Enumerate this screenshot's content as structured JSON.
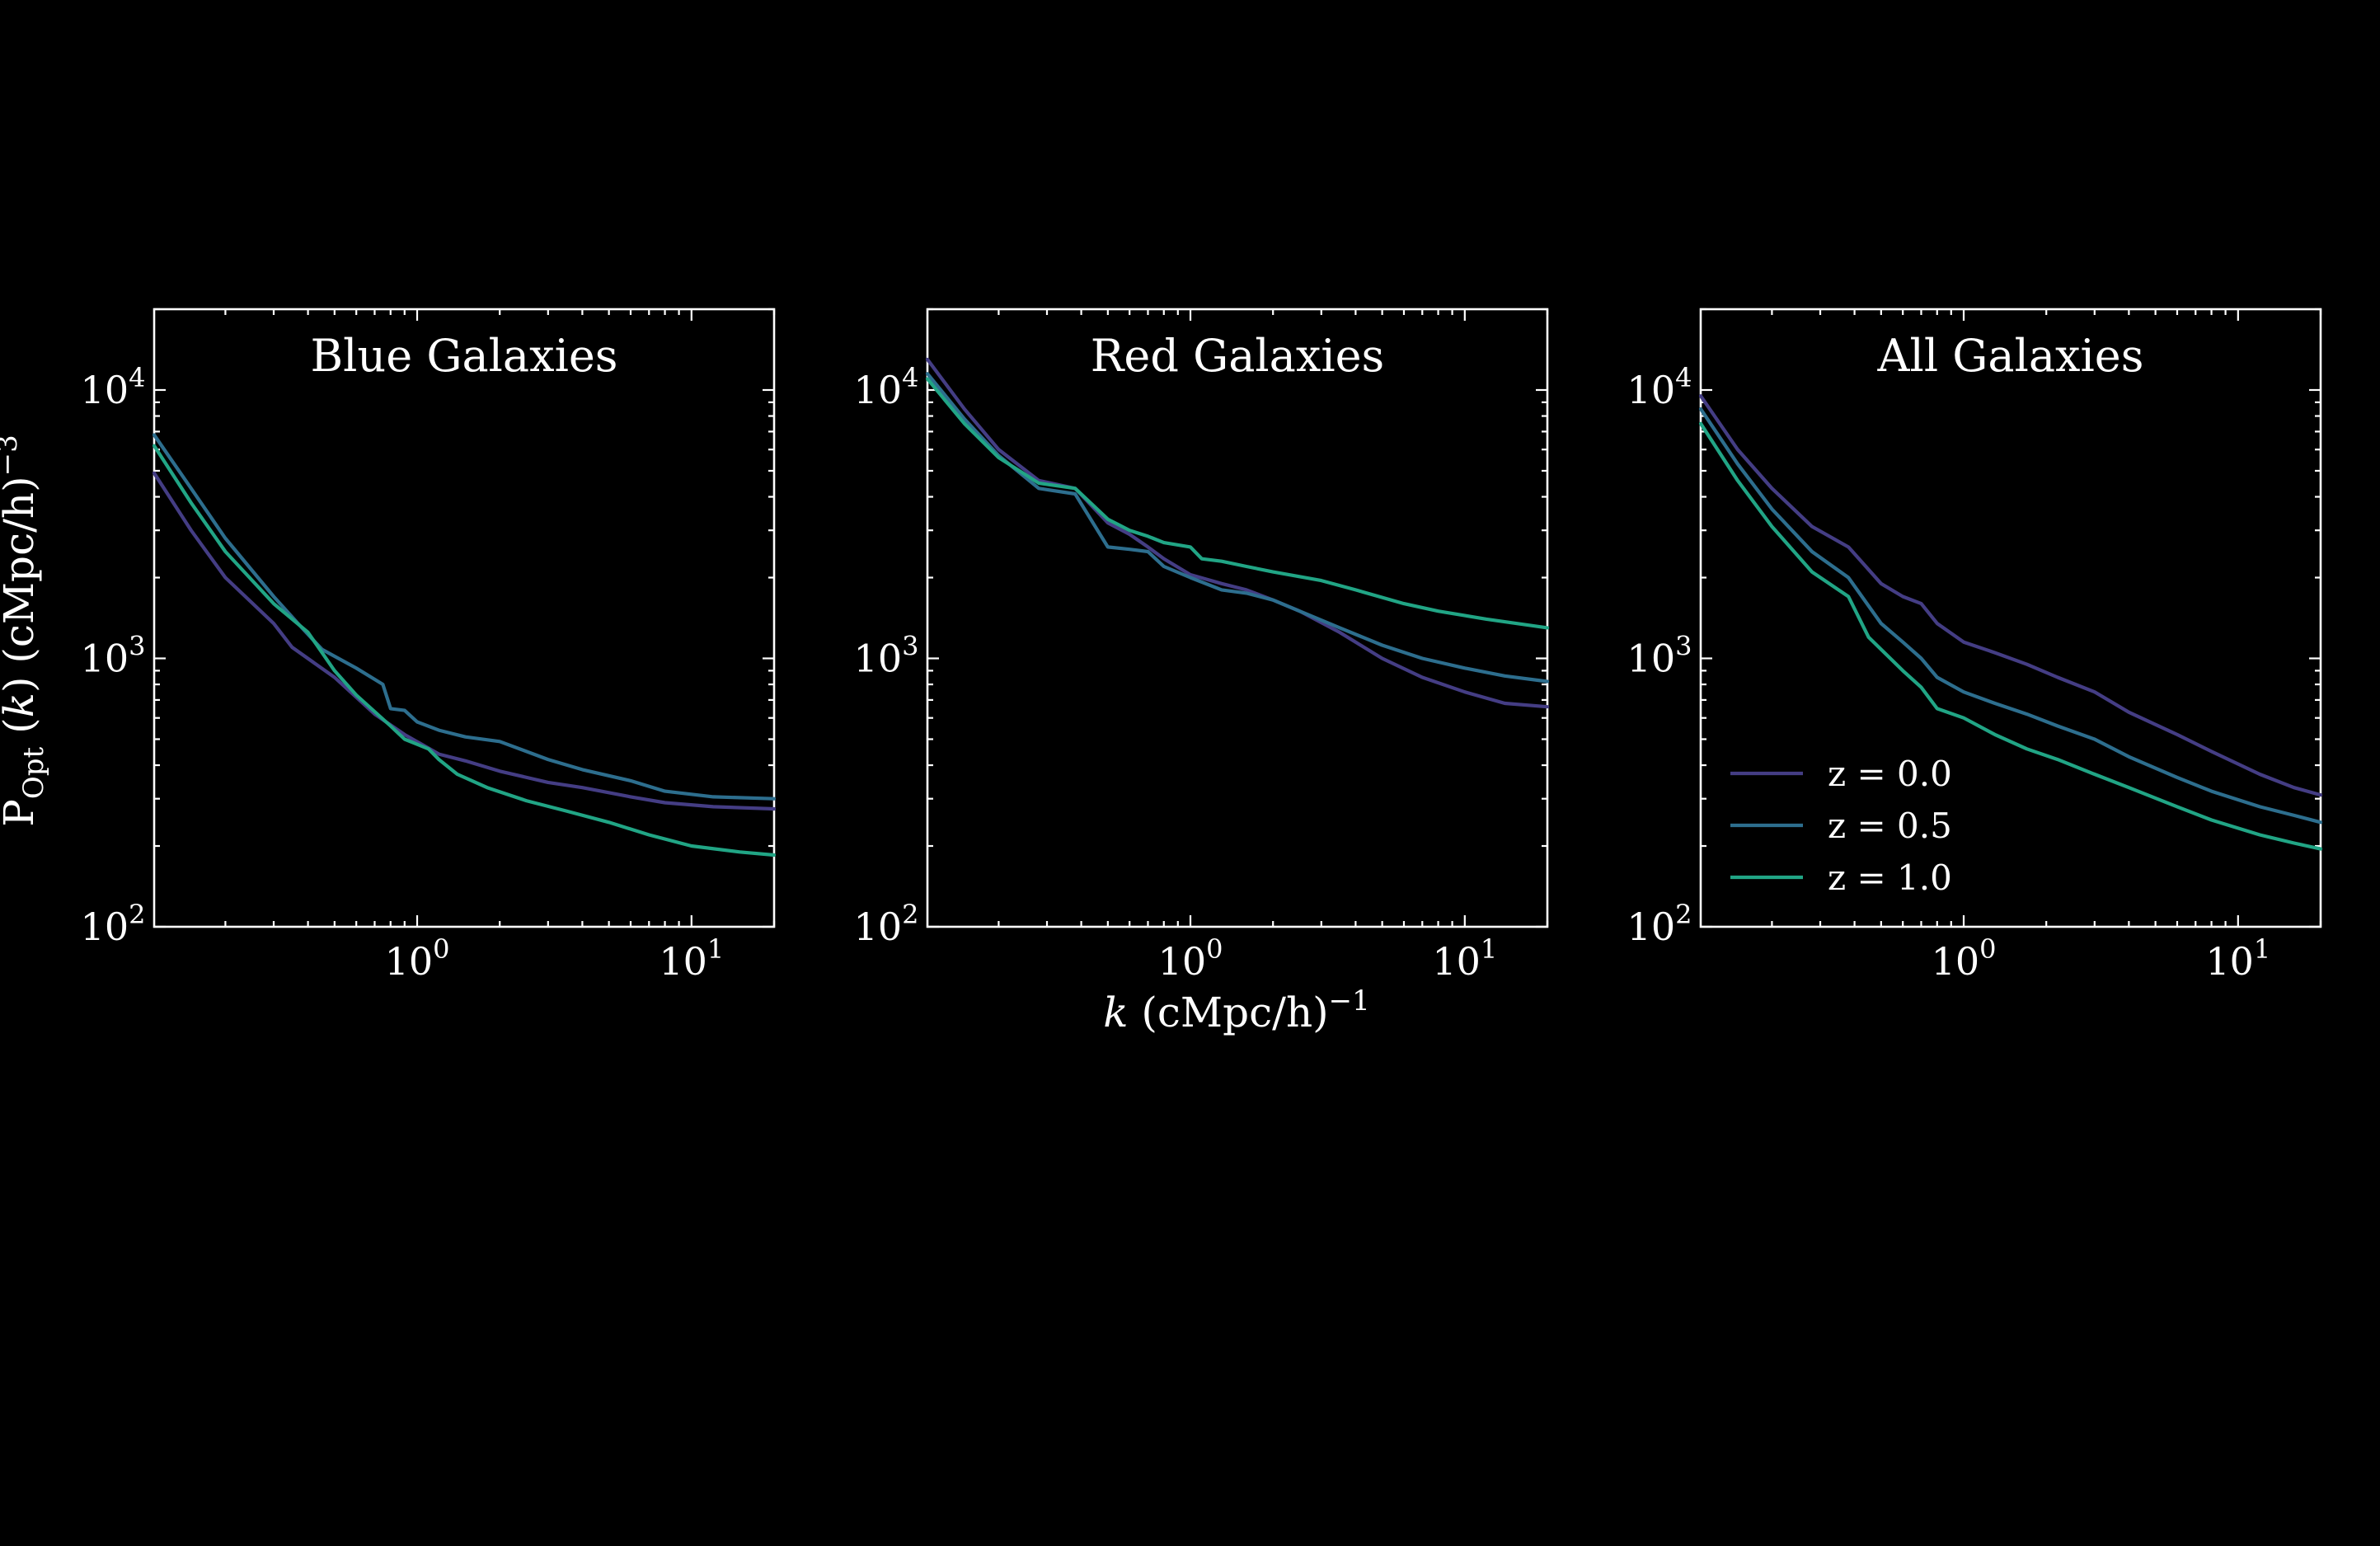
{
  "chart_data": [
    {
      "type": "line",
      "title": "Blue Galaxies",
      "xlabel": "",
      "ylabel": "P_Opt (k) (cMpc/h)^-3",
      "xscale": "log",
      "yscale": "log",
      "xlim": [
        0.11,
        20
      ],
      "ylim": [
        100,
        20000
      ],
      "xtick_labels": [
        "10^0",
        "10^1"
      ],
      "ytick_labels": [
        "10^2",
        "10^3",
        "10^4"
      ],
      "legend": null,
      "series": [
        {
          "name": "z = 0.0",
          "color": "#443d84",
          "points": [
            [
              0.11,
              4900
            ],
            [
              0.15,
              3000
            ],
            [
              0.2,
              2000
            ],
            [
              0.3,
              1350
            ],
            [
              0.35,
              1100
            ],
            [
              0.5,
              850
            ],
            [
              0.7,
              620
            ],
            [
              0.9,
              520
            ],
            [
              1.2,
              440
            ],
            [
              1.5,
              415
            ],
            [
              2,
              380
            ],
            [
              3,
              345
            ],
            [
              4,
              330
            ],
            [
              6,
              305
            ],
            [
              8,
              290
            ],
            [
              12,
              280
            ],
            [
              20,
              275
            ]
          ]
        },
        {
          "name": "z = 0.5",
          "color": "#2d6e8e",
          "points": [
            [
              0.11,
              6800
            ],
            [
              0.15,
              4300
            ],
            [
              0.2,
              2800
            ],
            [
              0.3,
              1700
            ],
            [
              0.38,
              1300
            ],
            [
              0.45,
              1080
            ],
            [
              0.6,
              920
            ],
            [
              0.75,
              800
            ],
            [
              0.8,
              650
            ],
            [
              0.9,
              640
            ],
            [
              1.0,
              580
            ],
            [
              1.2,
              540
            ],
            [
              1.5,
              510
            ],
            [
              2,
              490
            ],
            [
              3,
              420
            ],
            [
              4,
              385
            ],
            [
              6,
              350
            ],
            [
              8,
              320
            ],
            [
              12,
              305
            ],
            [
              20,
              300
            ]
          ]
        },
        {
          "name": "z = 1.0",
          "color": "#21a585",
          "points": [
            [
              0.11,
              6200
            ],
            [
              0.15,
              3800
            ],
            [
              0.2,
              2500
            ],
            [
              0.3,
              1600
            ],
            [
              0.4,
              1250
            ],
            [
              0.5,
              900
            ],
            [
              0.6,
              730
            ],
            [
              0.8,
              560
            ],
            [
              0.9,
              500
            ],
            [
              1.1,
              460
            ],
            [
              1.2,
              420
            ],
            [
              1.4,
              370
            ],
            [
              1.8,
              330
            ],
            [
              2.5,
              295
            ],
            [
              3.5,
              270
            ],
            [
              5,
              245
            ],
            [
              7,
              220
            ],
            [
              10,
              200
            ],
            [
              15,
              190
            ],
            [
              20,
              185
            ]
          ]
        }
      ]
    },
    {
      "type": "line",
      "title": "Red Galaxies",
      "xlabel": "k (cMpc/h)^-1",
      "ylabel": "",
      "xscale": "log",
      "yscale": "log",
      "xlim": [
        0.11,
        20
      ],
      "ylim": [
        100,
        20000
      ],
      "xtick_labels": [
        "10^0",
        "10^1"
      ],
      "ytick_labels": [
        "10^2",
        "10^3",
        "10^4"
      ],
      "legend": null,
      "series": [
        {
          "name": "z = 0.0",
          "color": "#443d84",
          "points": [
            [
              0.11,
              13000
            ],
            [
              0.15,
              8500
            ],
            [
              0.2,
              6000
            ],
            [
              0.28,
              4600
            ],
            [
              0.38,
              4300
            ],
            [
              0.5,
              3200
            ],
            [
              0.6,
              2900
            ],
            [
              0.7,
              2600
            ],
            [
              0.8,
              2350
            ],
            [
              1.0,
              2050
            ],
            [
              1.3,
              1900
            ],
            [
              1.6,
              1800
            ],
            [
              2.0,
              1650
            ],
            [
              2.5,
              1500
            ],
            [
              3.5,
              1250
            ],
            [
              5,
              1000
            ],
            [
              7,
              850
            ],
            [
              10,
              750
            ],
            [
              14,
              680
            ],
            [
              20,
              660
            ]
          ]
        },
        {
          "name": "z = 0.5",
          "color": "#2d6e8e",
          "points": [
            [
              0.11,
              11500
            ],
            [
              0.15,
              7800
            ],
            [
              0.2,
              5700
            ],
            [
              0.28,
              4300
            ],
            [
              0.38,
              4100
            ],
            [
              0.5,
              2600
            ],
            [
              0.6,
              2550
            ],
            [
              0.7,
              2500
            ],
            [
              0.8,
              2200
            ],
            [
              1.0,
              2000
            ],
            [
              1.3,
              1800
            ],
            [
              1.6,
              1750
            ],
            [
              2.0,
              1650
            ],
            [
              2.5,
              1500
            ],
            [
              3.5,
              1300
            ],
            [
              5,
              1120
            ],
            [
              7,
              1000
            ],
            [
              10,
              920
            ],
            [
              14,
              860
            ],
            [
              20,
              820
            ]
          ]
        },
        {
          "name": "z = 1.0",
          "color": "#21a585",
          "points": [
            [
              0.11,
              11000
            ],
            [
              0.15,
              7500
            ],
            [
              0.2,
              5600
            ],
            [
              0.28,
              4500
            ],
            [
              0.38,
              4300
            ],
            [
              0.5,
              3300
            ],
            [
              0.6,
              3000
            ],
            [
              0.7,
              2850
            ],
            [
              0.8,
              2700
            ],
            [
              1.0,
              2600
            ],
            [
              1.1,
              2350
            ],
            [
              1.3,
              2300
            ],
            [
              1.6,
              2200
            ],
            [
              2.0,
              2100
            ],
            [
              3,
              1950
            ],
            [
              4,
              1800
            ],
            [
              6,
              1600
            ],
            [
              8,
              1500
            ],
            [
              12,
              1400
            ],
            [
              20,
              1300
            ]
          ]
        }
      ]
    },
    {
      "type": "line",
      "title": "All Galaxies",
      "xlabel": "",
      "ylabel": "",
      "xscale": "log",
      "yscale": "log",
      "xlim": [
        0.11,
        20
      ],
      "ylim": [
        100,
        20000
      ],
      "xtick_labels": [
        "10^0",
        "10^1"
      ],
      "ytick_labels": [
        "10^2",
        "10^3",
        "10^4"
      ],
      "legend": "center-left",
      "series": [
        {
          "name": "z = 0.0",
          "color": "#443d84",
          "points": [
            [
              0.11,
              9500
            ],
            [
              0.15,
              6000
            ],
            [
              0.2,
              4300
            ],
            [
              0.28,
              3100
            ],
            [
              0.38,
              2600
            ],
            [
              0.5,
              1900
            ],
            [
              0.6,
              1700
            ],
            [
              0.7,
              1600
            ],
            [
              0.8,
              1350
            ],
            [
              1.0,
              1150
            ],
            [
              1.3,
              1050
            ],
            [
              1.7,
              950
            ],
            [
              2.2,
              850
            ],
            [
              3,
              750
            ],
            [
              4,
              630
            ],
            [
              6,
              520
            ],
            [
              8,
              450
            ],
            [
              12,
              370
            ],
            [
              16,
              330
            ],
            [
              20,
              310
            ]
          ]
        },
        {
          "name": "z = 0.5",
          "color": "#2d6e8e",
          "points": [
            [
              0.11,
              8500
            ],
            [
              0.15,
              5300
            ],
            [
              0.2,
              3600
            ],
            [
              0.28,
              2500
            ],
            [
              0.38,
              2000
            ],
            [
              0.5,
              1350
            ],
            [
              0.6,
              1150
            ],
            [
              0.7,
              1000
            ],
            [
              0.8,
              850
            ],
            [
              1.0,
              750
            ],
            [
              1.3,
              680
            ],
            [
              1.7,
              620
            ],
            [
              2.2,
              560
            ],
            [
              3,
              500
            ],
            [
              4,
              430
            ],
            [
              6,
              360
            ],
            [
              8,
              320
            ],
            [
              12,
              280
            ],
            [
              16,
              260
            ],
            [
              20,
              245
            ]
          ]
        },
        {
          "name": "z = 1.0",
          "color": "#21a585",
          "points": [
            [
              0.11,
              7500
            ],
            [
              0.15,
              4600
            ],
            [
              0.2,
              3100
            ],
            [
              0.28,
              2100
            ],
            [
              0.38,
              1700
            ],
            [
              0.45,
              1200
            ],
            [
              0.6,
              900
            ],
            [
              0.7,
              780
            ],
            [
              0.8,
              650
            ],
            [
              1.0,
              600
            ],
            [
              1.3,
              520
            ],
            [
              1.7,
              460
            ],
            [
              2.2,
              420
            ],
            [
              3,
              370
            ],
            [
              4,
              330
            ],
            [
              6,
              280
            ],
            [
              8,
              250
            ],
            [
              12,
              220
            ],
            [
              16,
              205
            ],
            [
              20,
              195
            ]
          ]
        }
      ]
    }
  ]
}
